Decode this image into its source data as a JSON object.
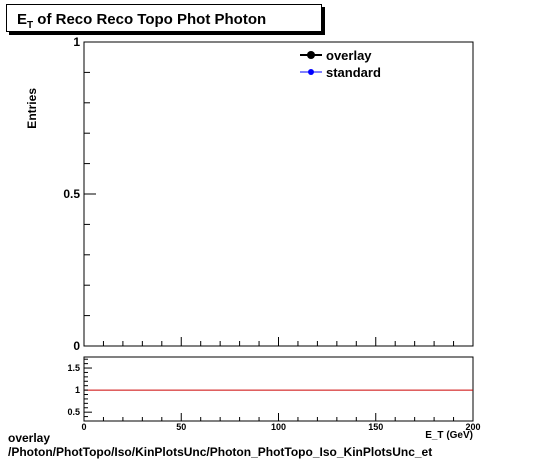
{
  "title": {
    "main": "E",
    "sub": "T",
    "rest": " of Reco Reco Topo Phot Photon"
  },
  "ylabel": "Entries",
  "xlabel": "E_T (GeV)",
  "footer": {
    "line1": "overlay",
    "line2": "/Photon/PhotTopo/Iso/KinPlotsUnc/Photon_PhotTopo_Iso_KinPlotsUnc_et"
  },
  "colors": {
    "overlay": "#000000",
    "standard": "#0000ff",
    "ratio_line": "#cc0000",
    "frame": "#000000"
  },
  "chart_data": [
    {
      "type": "line",
      "role": "main",
      "ylabel": "Entries",
      "xlim": [
        0,
        200
      ],
      "ylim": [
        0,
        1
      ],
      "yticks": [
        0,
        0.5,
        1
      ],
      "ytick_labels": [
        "0",
        "0.5",
        "1"
      ],
      "legend": {
        "placement": "top-right"
      },
      "series": [
        {
          "name": "overlay",
          "x": [],
          "y": []
        },
        {
          "name": "standard",
          "x": [],
          "y": []
        }
      ]
    },
    {
      "type": "line",
      "role": "ratio",
      "xlabel": "E_T (GeV)",
      "xlim": [
        0,
        200
      ],
      "ylim": [
        0.3,
        1.75
      ],
      "xticks": [
        0,
        50,
        100,
        150,
        200
      ],
      "xtick_labels": [
        "0",
        "50",
        "100",
        "150",
        "200"
      ],
      "yticks": [
        0.5,
        1,
        1.5
      ],
      "ytick_labels": [
        "0.5",
        "1",
        "1.5"
      ],
      "reference_line": 1
    }
  ]
}
